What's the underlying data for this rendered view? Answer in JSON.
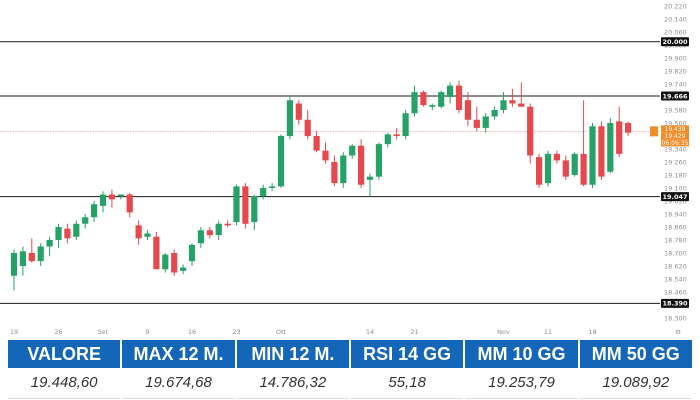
{
  "chart_data": {
    "type": "candlestick",
    "y_ticks": [
      18300,
      18380,
      18460,
      18540,
      18620,
      18700,
      18780,
      18860,
      18940,
      19020,
      19100,
      19180,
      19260,
      19340,
      19420,
      19500,
      19580,
      19660,
      19740,
      19820,
      19900,
      19980,
      20060,
      20140,
      20220
    ],
    "y_tick_labels": [
      "18.300",
      "18.380",
      "18.460",
      "18.540",
      "18.620",
      "18.700",
      "18.780",
      "18.860",
      "18.940",
      "19.020",
      "19.100",
      "19.180",
      "19.260",
      "19.340",
      "19.420",
      "19.500",
      "19.580",
      "19.660",
      "19.740",
      "19.820",
      "19.900",
      "19.980",
      "20.060",
      "20.140",
      "20.220"
    ],
    "ylim": [
      18300,
      20220
    ],
    "x_tick_labels": [
      {
        "label": "19",
        "index": 0
      },
      {
        "label": "26",
        "index": 5
      },
      {
        "label": "Set",
        "index": 10
      },
      {
        "label": "9",
        "index": 15
      },
      {
        "label": "16",
        "index": 20
      },
      {
        "label": "23",
        "index": 25
      },
      {
        "label": "Ott",
        "index": 30
      },
      {
        "label": "14",
        "index": 40
      },
      {
        "label": "21",
        "index": 45
      },
      {
        "label": "Nov",
        "index": 55
      },
      {
        "label": "11",
        "index": 60
      },
      {
        "label": "18",
        "index": 65
      }
    ],
    "horizontal_levels": [
      {
        "value": 20000,
        "label": "20.000"
      },
      {
        "value": 19666,
        "label": "19.666"
      },
      {
        "value": 19047,
        "label": "19.047"
      },
      {
        "value": 18390,
        "label": "18.390"
      }
    ],
    "current_price": {
      "value": 19448.6,
      "labels": [
        "19.439",
        "19.429",
        "06:06:35"
      ]
    },
    "candles": [
      {
        "o": 18560,
        "h": 18720,
        "l": 18470,
        "c": 18700
      },
      {
        "o": 18620,
        "h": 18740,
        "l": 18560,
        "c": 18710
      },
      {
        "o": 18700,
        "h": 18790,
        "l": 18640,
        "c": 18650
      },
      {
        "o": 18650,
        "h": 18760,
        "l": 18620,
        "c": 18740
      },
      {
        "o": 18740,
        "h": 18800,
        "l": 18680,
        "c": 18780
      },
      {
        "o": 18780,
        "h": 18880,
        "l": 18730,
        "c": 18860
      },
      {
        "o": 18850,
        "h": 18880,
        "l": 18760,
        "c": 18790
      },
      {
        "o": 18800,
        "h": 18900,
        "l": 18780,
        "c": 18880
      },
      {
        "o": 18880,
        "h": 18940,
        "l": 18850,
        "c": 18920
      },
      {
        "o": 18920,
        "h": 19020,
        "l": 18890,
        "c": 19000
      },
      {
        "o": 18990,
        "h": 19080,
        "l": 18950,
        "c": 19060
      },
      {
        "o": 19060,
        "h": 19090,
        "l": 18980,
        "c": 19030
      },
      {
        "o": 19050,
        "h": 19060,
        "l": 19030,
        "c": 19060
      },
      {
        "o": 19060,
        "h": 19070,
        "l": 18920,
        "c": 18950
      },
      {
        "o": 18870,
        "h": 18900,
        "l": 18750,
        "c": 18790
      },
      {
        "o": 18800,
        "h": 18840,
        "l": 18780,
        "c": 18820
      },
      {
        "o": 18800,
        "h": 18830,
        "l": 18600,
        "c": 18600
      },
      {
        "o": 18600,
        "h": 18700,
        "l": 18580,
        "c": 18690
      },
      {
        "o": 18700,
        "h": 18720,
        "l": 18560,
        "c": 18580
      },
      {
        "o": 18590,
        "h": 18630,
        "l": 18570,
        "c": 18610
      },
      {
        "o": 18650,
        "h": 18760,
        "l": 18620,
        "c": 18750
      },
      {
        "o": 18760,
        "h": 18860,
        "l": 18730,
        "c": 18840
      },
      {
        "o": 18840,
        "h": 18860,
        "l": 18790,
        "c": 18810
      },
      {
        "o": 18810,
        "h": 18900,
        "l": 18780,
        "c": 18880
      },
      {
        "o": 18880,
        "h": 18900,
        "l": 18860,
        "c": 18870
      },
      {
        "o": 18890,
        "h": 19120,
        "l": 18870,
        "c": 19110
      },
      {
        "o": 19110,
        "h": 19130,
        "l": 18850,
        "c": 18880
      },
      {
        "o": 18890,
        "h": 19060,
        "l": 18840,
        "c": 19050
      },
      {
        "o": 19050,
        "h": 19120,
        "l": 19030,
        "c": 19100
      },
      {
        "o": 19100,
        "h": 19130,
        "l": 19080,
        "c": 19110
      },
      {
        "o": 19110,
        "h": 19430,
        "l": 19100,
        "c": 19420
      },
      {
        "o": 19420,
        "h": 19660,
        "l": 19400,
        "c": 19640
      },
      {
        "o": 19620,
        "h": 19640,
        "l": 19490,
        "c": 19520
      },
      {
        "o": 19520,
        "h": 19580,
        "l": 19400,
        "c": 19420
      },
      {
        "o": 19420,
        "h": 19450,
        "l": 19320,
        "c": 19330
      },
      {
        "o": 19330,
        "h": 19380,
        "l": 19250,
        "c": 19270
      },
      {
        "o": 19260,
        "h": 19300,
        "l": 19110,
        "c": 19130
      },
      {
        "o": 19130,
        "h": 19320,
        "l": 19100,
        "c": 19300
      },
      {
        "o": 19300,
        "h": 19370,
        "l": 19280,
        "c": 19360
      },
      {
        "o": 19360,
        "h": 19400,
        "l": 19100,
        "c": 19120
      },
      {
        "o": 19150,
        "h": 19190,
        "l": 19050,
        "c": 19170
      },
      {
        "o": 19170,
        "h": 19380,
        "l": 19150,
        "c": 19370
      },
      {
        "o": 19370,
        "h": 19440,
        "l": 19350,
        "c": 19430
      },
      {
        "o": 19430,
        "h": 19470,
        "l": 19400,
        "c": 19420
      },
      {
        "o": 19420,
        "h": 19580,
        "l": 19400,
        "c": 19560
      },
      {
        "o": 19560,
        "h": 19730,
        "l": 19540,
        "c": 19690
      },
      {
        "o": 19690,
        "h": 19700,
        "l": 19600,
        "c": 19610
      },
      {
        "o": 19600,
        "h": 19620,
        "l": 19580,
        "c": 19610
      },
      {
        "o": 19600,
        "h": 19700,
        "l": 19590,
        "c": 19690
      },
      {
        "o": 19660,
        "h": 19750,
        "l": 19620,
        "c": 19730
      },
      {
        "o": 19730,
        "h": 19760,
        "l": 19560,
        "c": 19580
      },
      {
        "o": 19640,
        "h": 19690,
        "l": 19480,
        "c": 19520
      },
      {
        "o": 19520,
        "h": 19600,
        "l": 19450,
        "c": 19470
      },
      {
        "o": 19470,
        "h": 19560,
        "l": 19440,
        "c": 19540
      },
      {
        "o": 19540,
        "h": 19600,
        "l": 19520,
        "c": 19580
      },
      {
        "o": 19580,
        "h": 19690,
        "l": 19560,
        "c": 19640
      },
      {
        "o": 19640,
        "h": 19710,
        "l": 19600,
        "c": 19620
      },
      {
        "o": 19620,
        "h": 19750,
        "l": 19610,
        "c": 19600
      },
      {
        "o": 19600,
        "h": 19620,
        "l": 19250,
        "c": 19300
      },
      {
        "o": 19290,
        "h": 19310,
        "l": 19100,
        "c": 19120
      },
      {
        "o": 19130,
        "h": 19330,
        "l": 19110,
        "c": 19310
      },
      {
        "o": 19310,
        "h": 19330,
        "l": 19250,
        "c": 19270
      },
      {
        "o": 19270,
        "h": 19300,
        "l": 19150,
        "c": 19170
      },
      {
        "o": 19180,
        "h": 19320,
        "l": 19170,
        "c": 19310
      },
      {
        "o": 19310,
        "h": 19640,
        "l": 19110,
        "c": 19120
      },
      {
        "o": 19120,
        "h": 19500,
        "l": 19100,
        "c": 19480
      },
      {
        "o": 19480,
        "h": 19510,
        "l": 19150,
        "c": 19170
      },
      {
        "o": 19200,
        "h": 19530,
        "l": 19190,
        "c": 19500
      },
      {
        "o": 19510,
        "h": 19600,
        "l": 19290,
        "c": 19310
      },
      {
        "o": 19500,
        "h": 19510,
        "l": 19420,
        "c": 19440
      }
    ],
    "colors": {
      "up": "#26a269",
      "down": "#e5484d",
      "level_line": "#1a1a1a",
      "current_line": "#f08c8c",
      "current_label": "#f28c28"
    }
  },
  "stats": {
    "headers": [
      "VALORE",
      "MAX 12 M.",
      "MIN 12 M.",
      "RSI 14 GG",
      "MM 10 GG",
      "MM 50 GG"
    ],
    "values": [
      "19.448,60",
      "19.674,68",
      "14.786,32",
      "55,18",
      "19.253,79",
      "19.089,92"
    ]
  },
  "colors": {
    "header_bg": "#1467b8",
    "header_text": "#ffffff",
    "value_text": "#333333"
  }
}
